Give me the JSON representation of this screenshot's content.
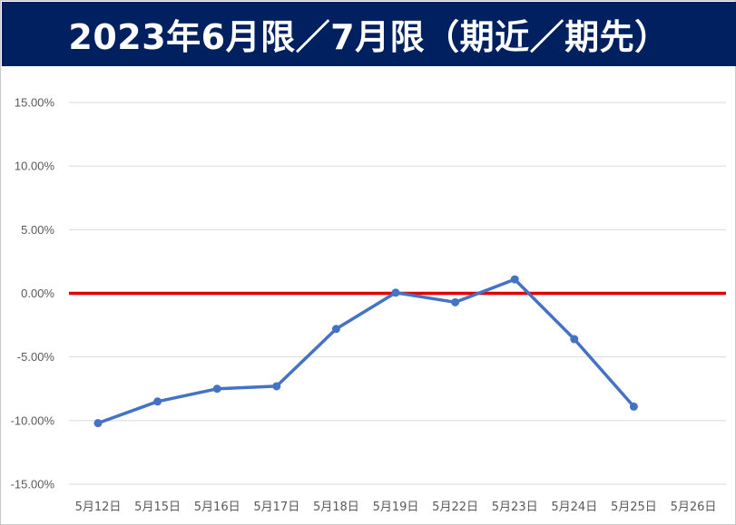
{
  "chart_data": {
    "type": "line",
    "title": "2023年6月限／7月限（期近／期先）",
    "categories": [
      "5月12日",
      "5月15日",
      "5月16日",
      "5月17日",
      "5月18日",
      "5月19日",
      "5月22日",
      "5月23日",
      "5月24日",
      "5月25日",
      "5月26日"
    ],
    "series": [
      {
        "values": [
          -10.2,
          -8.5,
          -7.5,
          -7.3,
          -2.8,
          0.05,
          -0.7,
          1.1,
          -3.6,
          -8.9,
          null
        ],
        "color": "#4472C4"
      }
    ],
    "reference_line": {
      "y": 0,
      "color": "#E00000"
    },
    "ylim": [
      -15,
      15
    ],
    "yticks": [
      -15,
      -10,
      -5,
      0,
      5,
      10,
      15
    ],
    "ytick_labels": [
      "-15.00%",
      "-10.00%",
      "-5.00%",
      "0.00%",
      "5.00%",
      "10.00%",
      "15.00%"
    ],
    "xlabel": "",
    "ylabel": "",
    "grid": true,
    "legend": "none"
  },
  "colors": {
    "title_background": "#012060",
    "title_text": "#FFFFFF",
    "gridline": "#D9D9D9",
    "tick_text": "#595959"
  }
}
